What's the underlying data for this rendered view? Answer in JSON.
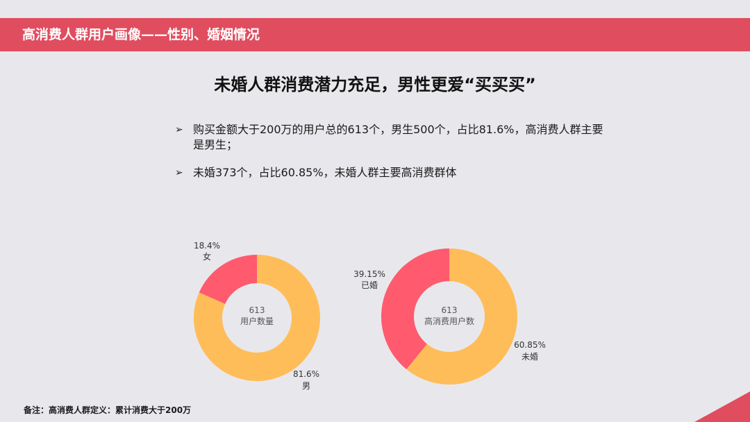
{
  "header": {
    "title": "高消费人群用户画像——性别、婚姻情况"
  },
  "headline": "未婚人群消费潜力充足，男性更爱“买买买”",
  "bullets": [
    {
      "mark": "➢",
      "text": "购买金额大于200万的用户总的613个，男生500个，占比81.6%，高消费人群主要是男生；"
    },
    {
      "mark": "➢",
      "text": "未婚373个，占比60.85%，未婚人群主要高消费群体"
    }
  ],
  "footnote": "备注：高消费人群定义：累计消费大于200万",
  "chart_data": [
    {
      "type": "pie",
      "donut": true,
      "center_value": "613",
      "center_label": "用户数量",
      "slices": [
        {
          "category": "男",
          "percent_label": "81.6%",
          "value": 81.6,
          "color": "#ffbd59"
        },
        {
          "category": "女",
          "percent_label": "18.4%",
          "value": 18.4,
          "color": "#ff5a6e"
        }
      ]
    },
    {
      "type": "pie",
      "donut": true,
      "center_value": "613",
      "center_label": "高消费用户数",
      "slices": [
        {
          "category": "未婚",
          "percent_label": "60.85%",
          "value": 60.85,
          "color": "#ffbd59"
        },
        {
          "category": "已婚",
          "percent_label": "39.15%",
          "value": 39.15,
          "color": "#ff5a6e"
        }
      ]
    }
  ],
  "colors": {
    "accent": "#e04d5f",
    "slice_major": "#ffbd59",
    "slice_minor": "#ff5a6e"
  }
}
